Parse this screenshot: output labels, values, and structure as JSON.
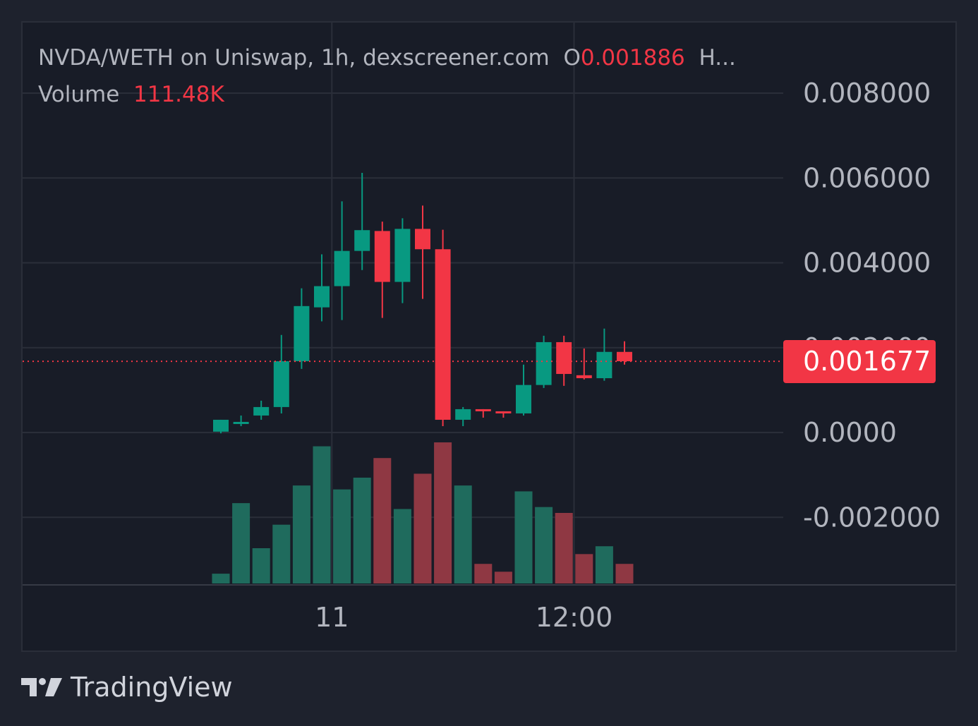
{
  "legend": {
    "title": "NVDA/WETH on Uniswap, 1h, dexscreener.com",
    "open_prefix": "O",
    "open_value": "0.001886",
    "more": "H...",
    "volume_label": "Volume",
    "volume_value": "111.48K"
  },
  "last_price_label": "0.001677",
  "brand": {
    "name": "TradingView"
  },
  "colors": {
    "up": "#089981",
    "down": "#f23645",
    "volume_up": "#1f6b5d",
    "volume_down": "#8f3843",
    "grid": "#2a2e39",
    "axis_text": "#b2b5be"
  },
  "chart_data": {
    "type": "candlestick",
    "y_tick_labels": [
      "0.008000",
      "0.006000",
      "0.004000",
      "0.002000",
      "0.0000",
      "-0.002000"
    ],
    "y_tick_values": [
      0.008,
      0.006,
      0.004,
      0.002,
      0.0,
      -0.002
    ],
    "ylim": [
      -0.0035,
      0.0088
    ],
    "x_tick_labels": [
      "11",
      "12:00"
    ],
    "x_tick_index": [
      5.5,
      17.5
    ],
    "last_price": 0.001677,
    "candles": [
      {
        "o": 2e-05,
        "h": 0.0003,
        "l": -2e-05,
        "c": 0.0003
      },
      {
        "o": 0.00025,
        "h": 0.0004,
        "l": 0.00015,
        "c": 0.00025
      },
      {
        "o": 0.0004,
        "h": 0.00075,
        "l": 0.0003,
        "c": 0.0006
      },
      {
        "o": 0.0006,
        "h": 0.0023,
        "l": 0.00045,
        "c": 0.00168
      },
      {
        "o": 0.00168,
        "h": 0.0034,
        "l": 0.0015,
        "c": 0.00298
      },
      {
        "o": 0.00295,
        "h": 0.0042,
        "l": 0.00262,
        "c": 0.00345
      },
      {
        "o": 0.00345,
        "h": 0.00545,
        "l": 0.00265,
        "c": 0.00428
      },
      {
        "o": 0.00428,
        "h": 0.00612,
        "l": 0.00383,
        "c": 0.00477
      },
      {
        "o": 0.00475,
        "h": 0.00497,
        "l": 0.0027,
        "c": 0.00355
      },
      {
        "o": 0.00355,
        "h": 0.00505,
        "l": 0.00305,
        "c": 0.0048
      },
      {
        "o": 0.0048,
        "h": 0.00535,
        "l": 0.00315,
        "c": 0.00432
      },
      {
        "o": 0.00432,
        "h": 0.00478,
        "l": 0.00015,
        "c": 0.0003
      },
      {
        "o": 0.0003,
        "h": 0.0006,
        "l": 0.00015,
        "c": 0.00055
      },
      {
        "o": 0.00055,
        "h": 0.00055,
        "l": 0.00035,
        "c": 0.0005
      },
      {
        "o": 0.0005,
        "h": 0.0005,
        "l": 0.00035,
        "c": 0.00045
      },
      {
        "o": 0.00045,
        "h": 0.0016,
        "l": 0.0004,
        "c": 0.00112
      },
      {
        "o": 0.00112,
        "h": 0.00228,
        "l": 0.00105,
        "c": 0.00213
      },
      {
        "o": 0.00213,
        "h": 0.00228,
        "l": 0.0011,
        "c": 0.00138
      },
      {
        "o": 0.00135,
        "h": 0.00198,
        "l": 0.00125,
        "c": 0.00128
      },
      {
        "o": 0.00128,
        "h": 0.00245,
        "l": 0.00122,
        "c": 0.0019
      },
      {
        "o": 0.0019,
        "h": 0.00215,
        "l": 0.0016,
        "c": 0.00168
      }
    ],
    "volume": [
      5,
      41,
      18,
      30,
      50,
      70,
      48,
      54,
      64,
      38,
      56,
      72,
      50,
      10,
      6,
      47,
      39,
      36,
      15,
      19,
      10
    ]
  }
}
